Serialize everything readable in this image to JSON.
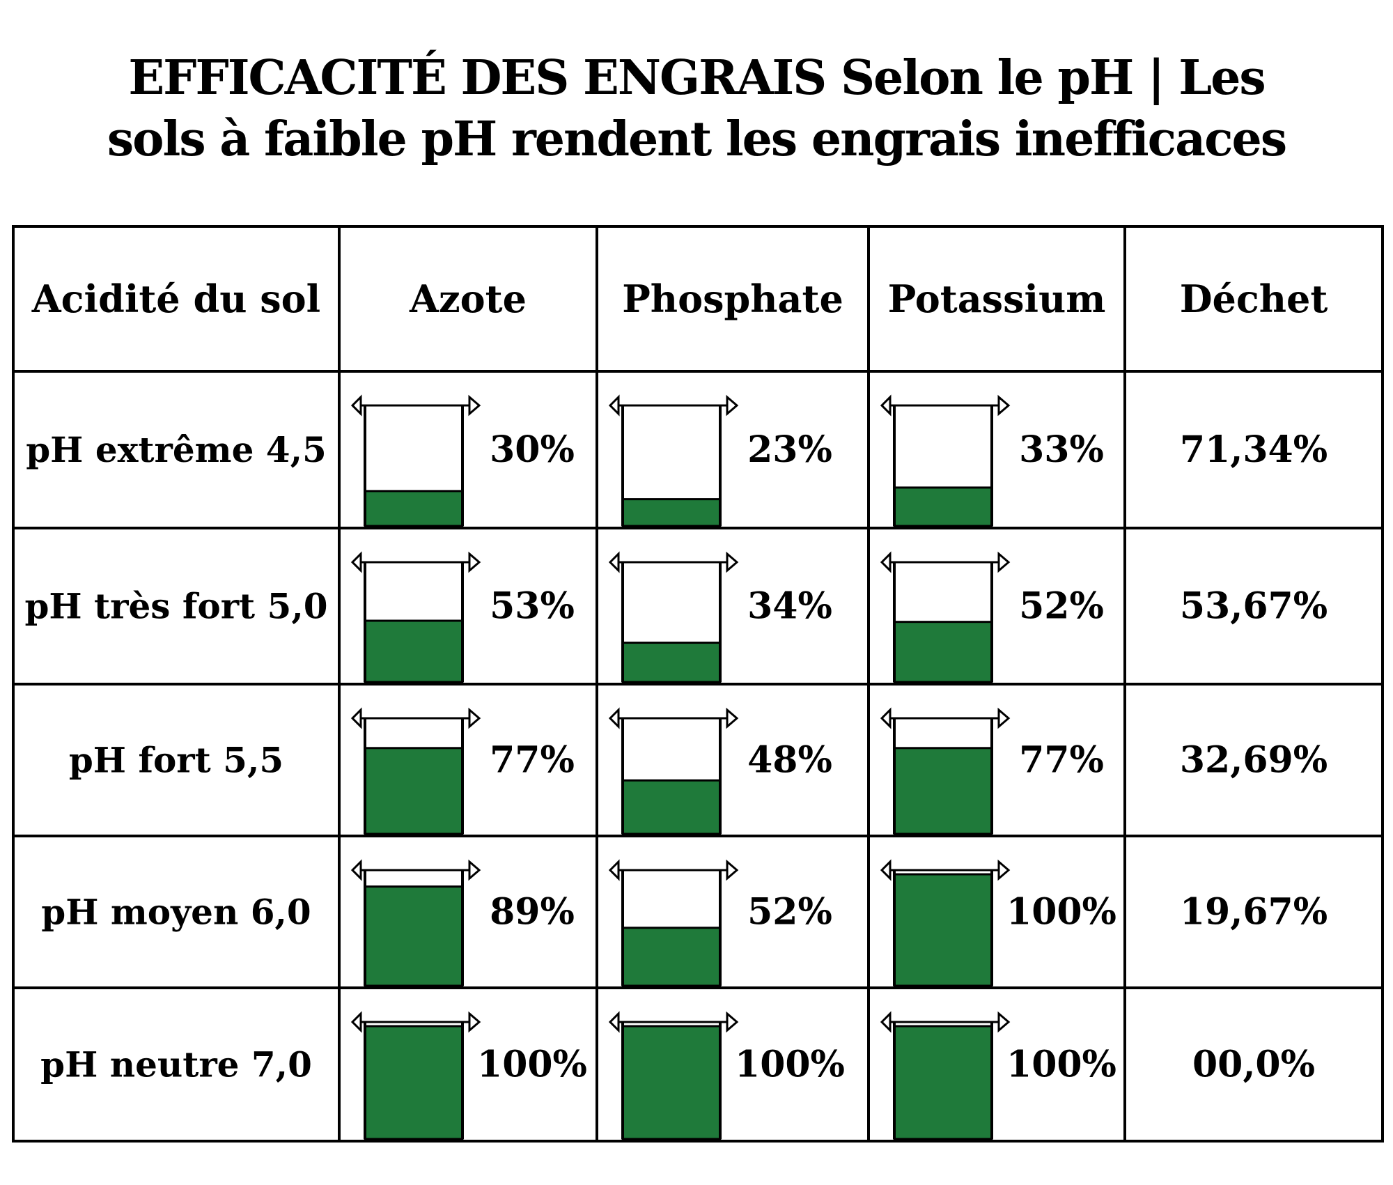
{
  "title": {
    "line1": "EFFICACITÉ DES ENGRAIS Selon le pH | Les",
    "line2": "sols à faible pH rendent les engrais inefficaces"
  },
  "colors": {
    "fill": "#1f7a3a",
    "border": "#000000",
    "background": "#ffffff"
  },
  "chart_data": {
    "type": "table",
    "columns": [
      "Acidité du sol",
      "Azote",
      "Phosphate",
      "Potassium",
      "Déchet"
    ],
    "rows": [
      {
        "label": "pH extrême 4,5",
        "azote": 30,
        "phosphate": 23,
        "potassium": 33,
        "azote_label": "30%",
        "phosphate_label": "23%",
        "potassium_label": "33%",
        "dechet": "71,34%"
      },
      {
        "label": "pH très fort 5,0",
        "azote": 53,
        "phosphate": 34,
        "potassium": 52,
        "azote_label": "53%",
        "phosphate_label": "34%",
        "potassium_label": "52%",
        "dechet": "53,67%"
      },
      {
        "label": "pH fort 5,5",
        "azote": 77,
        "phosphate": 48,
        "potassium": 77,
        "azote_label": "77%",
        "phosphate_label": "48%",
        "potassium_label": "77%",
        "dechet": "32,69%"
      },
      {
        "label": "pH moyen 6,0",
        "azote": 89,
        "phosphate": 52,
        "potassium": 100,
        "azote_label": "89%",
        "phosphate_label": "52%",
        "potassium_label": "100%",
        "dechet": "19,67%"
      },
      {
        "label": "pH neutre 7,0",
        "azote": 100,
        "phosphate": 100,
        "potassium": 100,
        "azote_label": "100%",
        "phosphate_label": "100%",
        "potassium_label": "100%",
        "dechet": "00,0%"
      }
    ]
  }
}
